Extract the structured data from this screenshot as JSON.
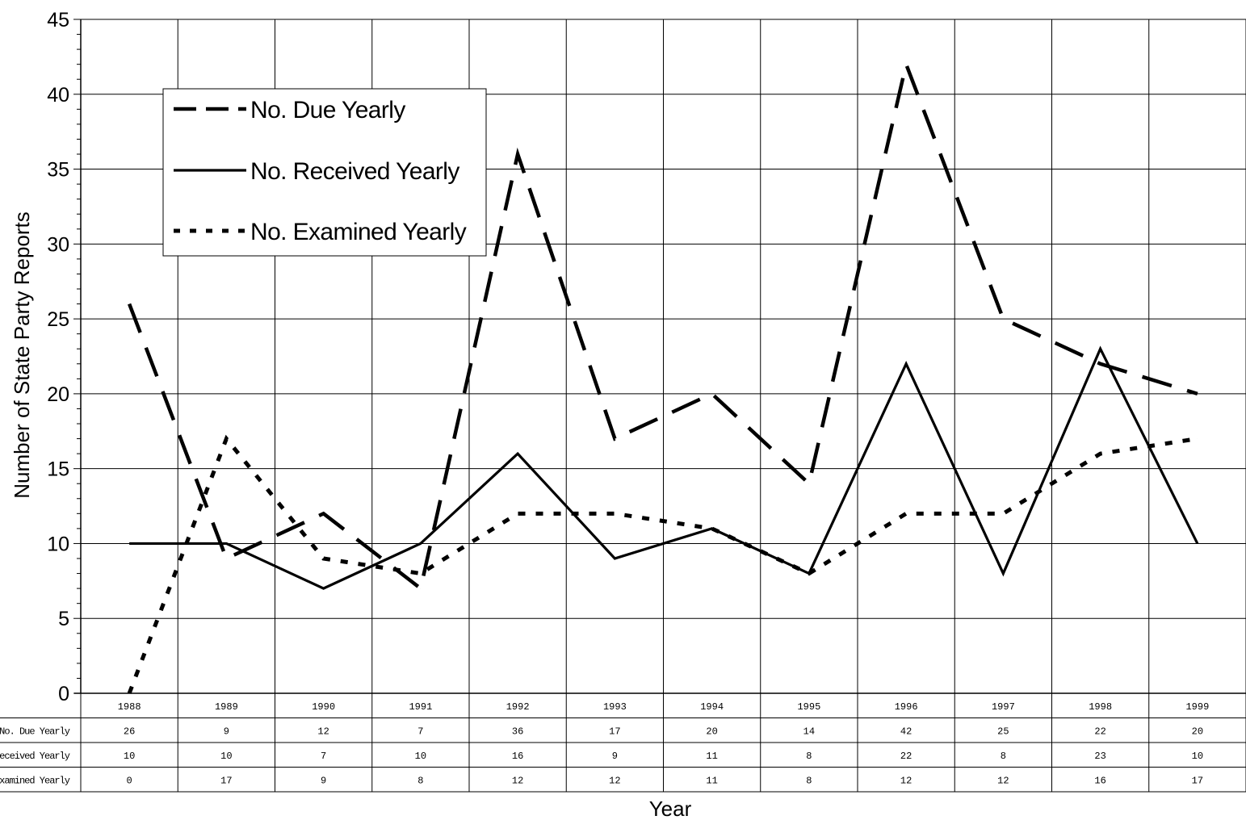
{
  "chart_data": {
    "type": "line",
    "title": "",
    "xlabel": "Year",
    "ylabel": "Number of State Party Reports",
    "ylim": [
      0,
      45
    ],
    "y_ticks": [
      0,
      5,
      10,
      15,
      20,
      25,
      30,
      35,
      40,
      45
    ],
    "categories": [
      "1988",
      "1989",
      "1990",
      "1991",
      "1992",
      "1993",
      "1994",
      "1995",
      "1996",
      "1997",
      "1998",
      "1999"
    ],
    "grid": true,
    "legend": "top-left",
    "series": [
      {
        "name": "No. Due Yearly",
        "style": "dashed",
        "table_label": "No. Due Yearly",
        "values": [
          26,
          9,
          12,
          7,
          36,
          17,
          20,
          14,
          42,
          25,
          22,
          20
        ]
      },
      {
        "name": "No. Received Yearly",
        "style": "solid",
        "table_label": "No. Received Yearly",
        "values": [
          10,
          10,
          7,
          10,
          16,
          9,
          11,
          8,
          22,
          8,
          23,
          10
        ]
      },
      {
        "name": "No. Examined Yearly",
        "style": "dotted",
        "table_label": "No. Examined Yearly",
        "values": [
          0,
          17,
          9,
          8,
          12,
          12,
          11,
          8,
          12,
          12,
          16,
          17
        ]
      }
    ],
    "data_table": true,
    "colors": {
      "line": "#000000",
      "grid": "#000000",
      "background": "#ffffff"
    }
  }
}
